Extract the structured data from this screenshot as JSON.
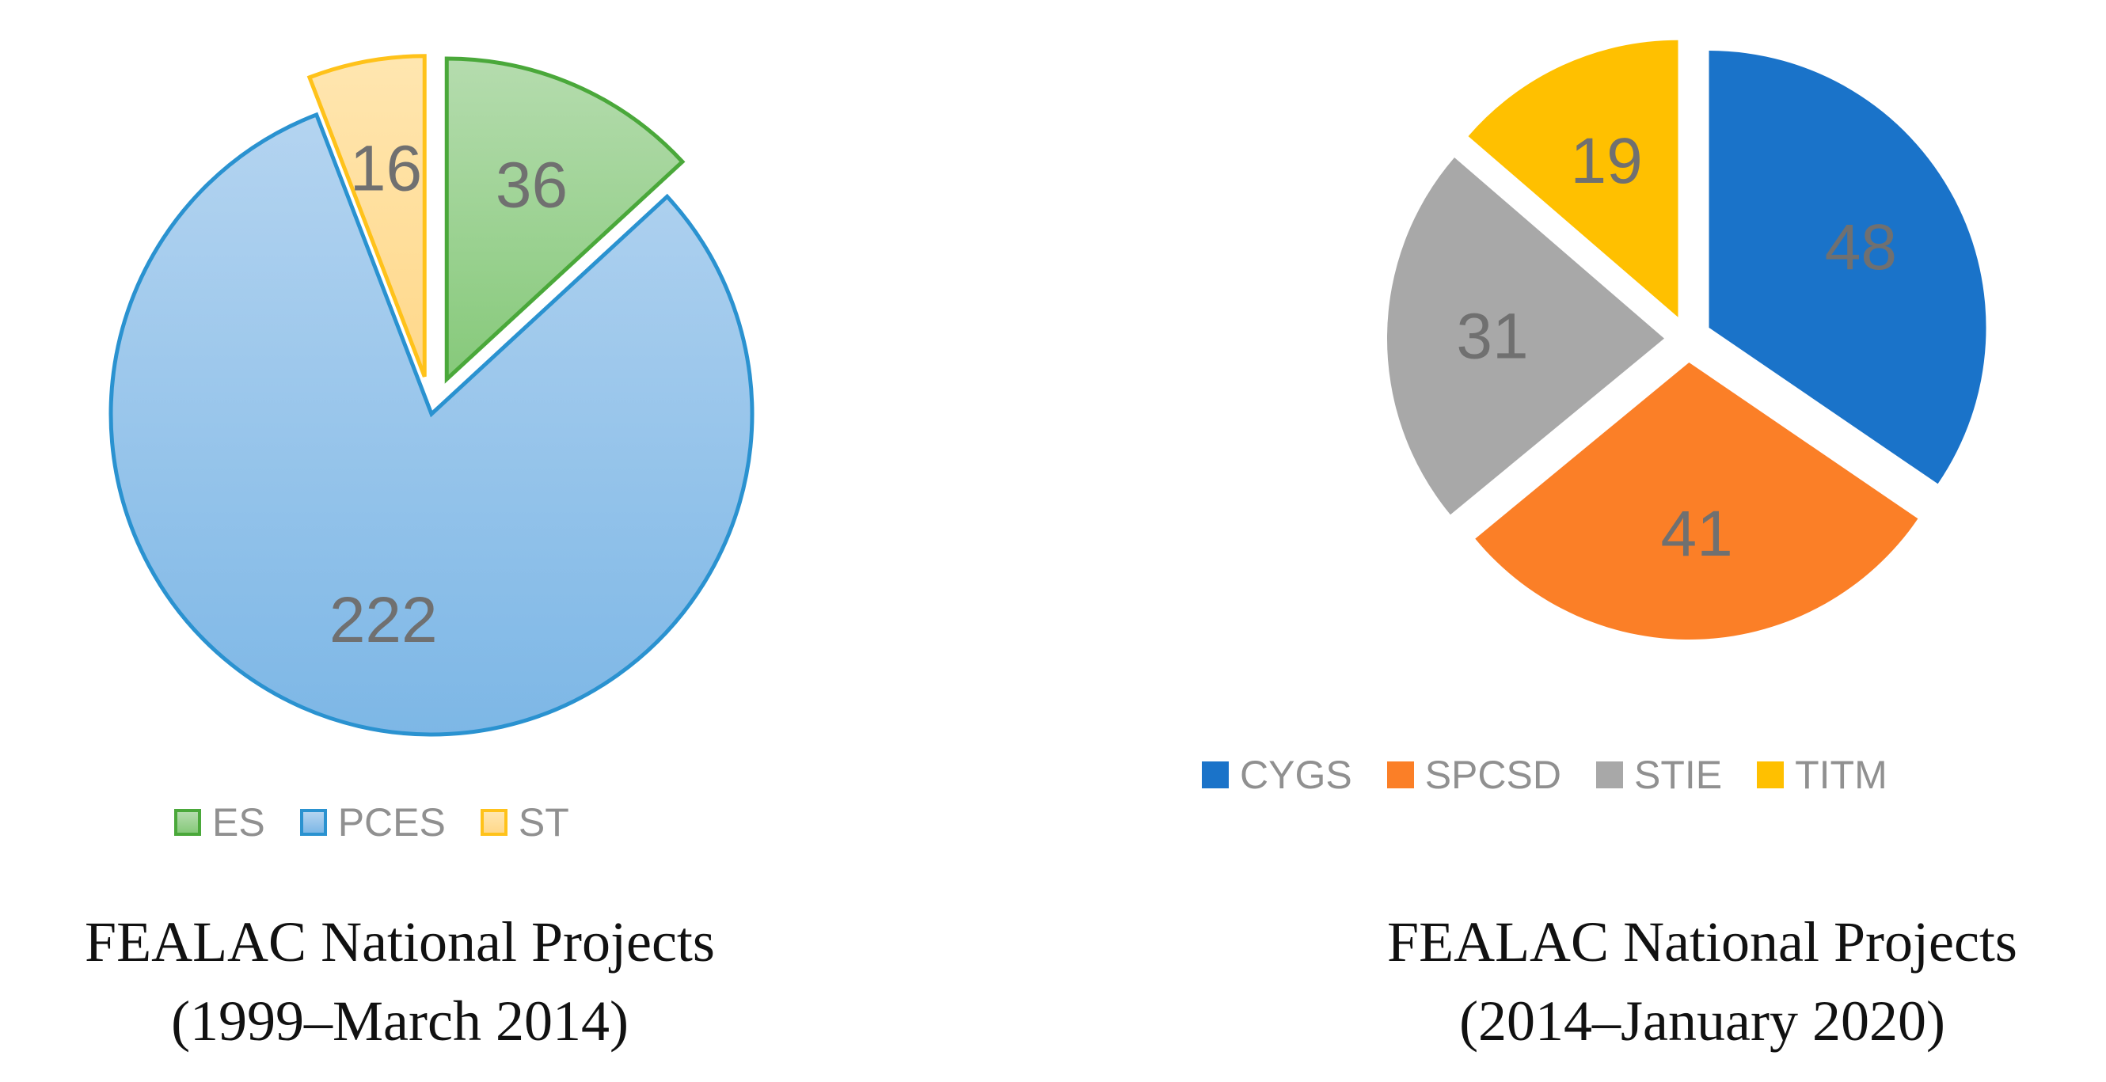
{
  "chart_data": [
    {
      "type": "pie",
      "title": "FEALAC National Projects",
      "subtitle": "(1999–March 2014)",
      "categories": [
        "ES",
        "PCES",
        "ST"
      ],
      "values": [
        36,
        222,
        16
      ],
      "exploded": [
        "ES",
        "ST"
      ],
      "legend_position": "bottom",
      "colors": {
        "ES": {
          "fill_top": "#b5dcae",
          "fill_bottom": "#86c97a",
          "stroke": "#4aa83a"
        },
        "PCES": {
          "fill_top": "#b4d4f0",
          "fill_bottom": "#7db7e6",
          "stroke": "#2a92d0"
        },
        "ST": {
          "fill_top": "#ffe6b0",
          "fill_bottom": "#ffd88a",
          "stroke": "#ffc21a"
        }
      }
    },
    {
      "type": "pie",
      "title": "FEALAC National Projects",
      "subtitle": "(2014–January 2020)",
      "categories": [
        "CYGS",
        "SPCSD",
        "STIE",
        "TITM"
      ],
      "values": [
        48,
        41,
        31,
        19
      ],
      "exploded": [
        "CYGS",
        "SPCSD",
        "STIE",
        "TITM"
      ],
      "legend_position": "bottom",
      "colors": {
        "CYGS": {
          "fill": "#1a73c9",
          "stroke": "#ffffff"
        },
        "SPCSD": {
          "fill": "#fb7f27",
          "stroke": "#ffffff"
        },
        "STIE": {
          "fill": "#a8a8a8",
          "stroke": "#ffffff"
        },
        "TITM": {
          "fill": "#ffc000",
          "stroke": "#ffffff"
        }
      }
    }
  ]
}
